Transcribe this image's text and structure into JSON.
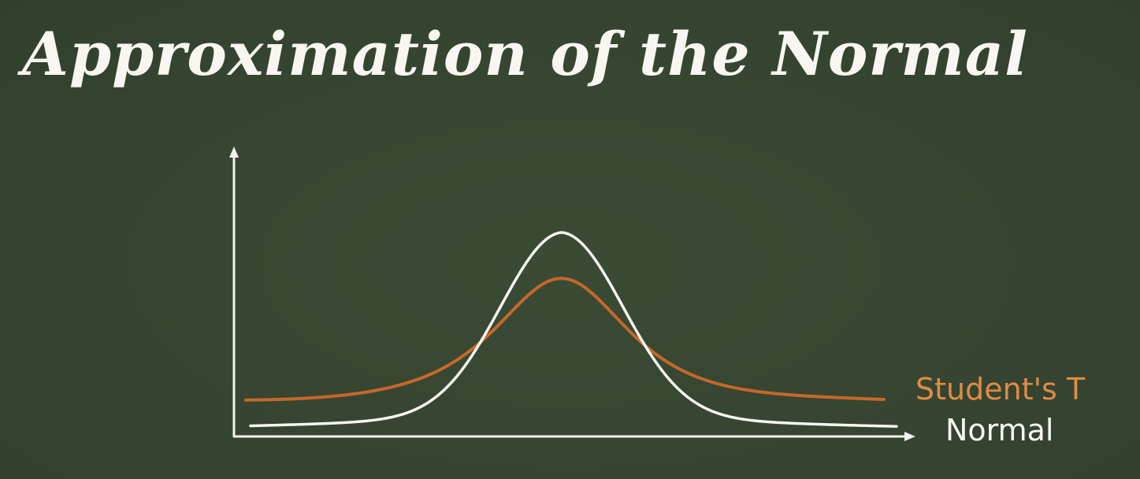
{
  "title": "Approximation of the Normal",
  "colors": {
    "background": "#364632",
    "normal": "#f7f6f1",
    "student_t": "#c5682a",
    "student_t_label": "#e08b44",
    "axes": "#f2f2ee"
  },
  "legend": {
    "student_t": "Student's T",
    "normal": "Normal"
  },
  "diagram": {
    "curves": [
      {
        "name": "Normal",
        "shape": "tall narrow bell curve with thin tails",
        "color": "#f7f6f1"
      },
      {
        "name": "Student's T",
        "shape": "lower, wider bell curve with heavier tails",
        "color": "#c5682a"
      }
    ],
    "axes": [
      "x-axis-arrow",
      "y-axis-arrow"
    ]
  }
}
